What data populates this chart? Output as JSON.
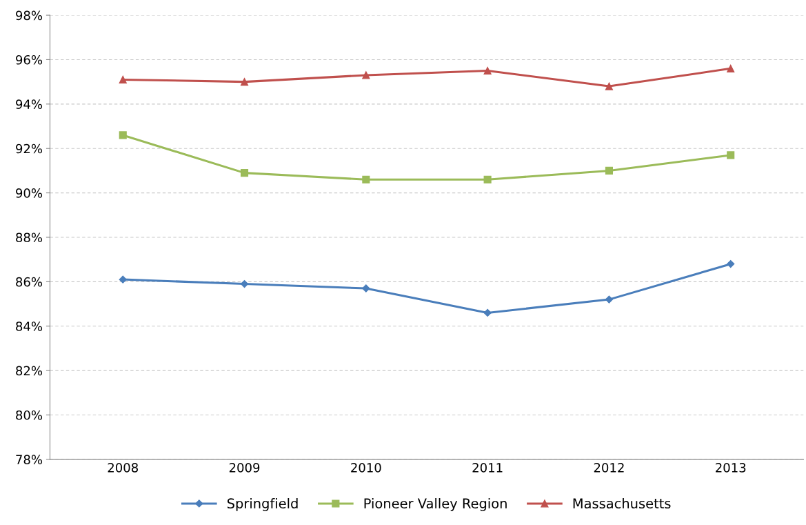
{
  "chart_data": {
    "type": "line",
    "categories": [
      "2008",
      "2009",
      "2010",
      "2011",
      "2012",
      "2013"
    ],
    "series": [
      {
        "name": "Springfield",
        "color": "#4a7ebb",
        "marker": "diamond",
        "values": [
          86.1,
          85.9,
          85.7,
          84.6,
          85.2,
          86.8
        ]
      },
      {
        "name": "Pioneer Valley Region",
        "color": "#9bbb59",
        "marker": "square",
        "values": [
          92.6,
          90.9,
          90.6,
          90.6,
          91.0,
          91.7
        ]
      },
      {
        "name": "Massachusetts",
        "color": "#c0504d",
        "marker": "triangle",
        "values": [
          95.1,
          95.0,
          95.3,
          95.5,
          94.8,
          95.6
        ]
      }
    ],
    "ylim": [
      78,
      98
    ],
    "yticks": [
      {
        "value": 78,
        "label": "78%"
      },
      {
        "value": 80,
        "label": "80%"
      },
      {
        "value": 82,
        "label": "82%"
      },
      {
        "value": 84,
        "label": "84%"
      },
      {
        "value": 86,
        "label": "86%"
      },
      {
        "value": 88,
        "label": "88%"
      },
      {
        "value": 90,
        "label": "90%"
      },
      {
        "value": 92,
        "label": "92%"
      },
      {
        "value": 94,
        "label": "94%"
      },
      {
        "value": 96,
        "label": "96%"
      },
      {
        "value": 98,
        "label": "98%"
      }
    ],
    "grid": "y",
    "legend": "bottom",
    "line_style": "solid"
  }
}
